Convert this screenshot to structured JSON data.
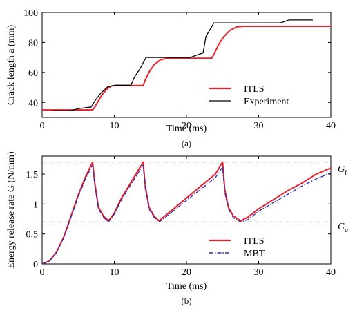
{
  "chart_data": [
    {
      "type": "line",
      "panel_label": "(a)",
      "xlabel": "Time (ms)",
      "ylabel": "Crack length a (mm)",
      "xlim": [
        0,
        40
      ],
      "ylim": [
        30,
        100
      ],
      "xticks": [
        0,
        10,
        20,
        30,
        40
      ],
      "yticks": [
        40,
        60,
        80,
        100
      ],
      "grid": false,
      "legend_position": "bottom-right",
      "series": [
        {
          "name": "ITLS",
          "color": "#e8202a",
          "style": "solid",
          "x": [
            0,
            7,
            7.3,
            7.8,
            8.3,
            9.0,
            9.6,
            10.2,
            11.0,
            14.0,
            14.3,
            14.9,
            15.6,
            16.4,
            17.5,
            23.5,
            23.9,
            24.5,
            25.2,
            26.0,
            27.0,
            28.0,
            40
          ],
          "y": [
            35,
            35,
            37,
            41,
            45,
            49,
            51,
            51.3,
            51.3,
            51.3,
            55,
            61,
            65.5,
            68.5,
            69.5,
            69.5,
            73,
            79,
            84,
            88,
            90.5,
            90.8,
            90.8
          ]
        },
        {
          "name": "Experiment",
          "color": "#000000",
          "style": "solid",
          "x": [
            1.5,
            3.8,
            5.2,
            6.8,
            7.3,
            8.1,
            9.1,
            10.2,
            12.3,
            12.8,
            13.5,
            14.4,
            16.0,
            20.5,
            22.3,
            22.7,
            23.8,
            33.0,
            34.2,
            37.5
          ],
          "y": [
            34.5,
            34.5,
            36,
            37,
            41,
            46,
            50.5,
            51.5,
            51.5,
            57,
            62,
            70,
            70,
            70,
            73,
            84,
            93,
            93,
            95,
            95
          ]
        }
      ]
    },
    {
      "type": "line",
      "panel_label": "(b)",
      "xlabel": "Time (ms)",
      "ylabel": "Energy release rate G (N/mm)",
      "xlim": [
        0,
        40
      ],
      "ylim": [
        0,
        1.8
      ],
      "xticks": [
        0,
        10,
        20,
        30,
        40
      ],
      "yticks": [
        0,
        0.5,
        1,
        1.5
      ],
      "grid": false,
      "legend_position": "bottom-right",
      "reference_lines": [
        {
          "label": "G_i",
          "y": 1.7
        },
        {
          "label": "G_a",
          "y": 0.7
        }
      ],
      "series": [
        {
          "name": "ITLS",
          "color": "#e8202a",
          "style": "solid",
          "x": [
            0,
            1,
            2,
            3,
            4,
            5,
            6,
            7,
            7.3,
            7.8,
            8.5,
            9.2,
            10,
            11,
            12,
            13,
            14,
            14.3,
            14.8,
            15.5,
            16.2,
            17,
            18,
            20,
            22,
            24,
            25,
            25.3,
            25.8,
            26.5,
            27.5,
            28.5,
            30,
            32,
            34,
            36,
            38,
            40
          ],
          "y": [
            0,
            0.05,
            0.2,
            0.45,
            0.8,
            1.15,
            1.45,
            1.7,
            1.35,
            0.95,
            0.8,
            0.72,
            0.85,
            1.1,
            1.3,
            1.5,
            1.7,
            1.3,
            0.95,
            0.8,
            0.72,
            0.8,
            0.9,
            1.1,
            1.3,
            1.5,
            1.7,
            1.25,
            0.95,
            0.8,
            0.72,
            0.78,
            0.92,
            1.07,
            1.22,
            1.35,
            1.5,
            1.6
          ]
        },
        {
          "name": "MBT",
          "color": "#2a2ab0",
          "style": "dash-dot",
          "x": [
            0,
            1,
            2,
            3,
            4,
            5,
            6,
            7,
            7.3,
            7.8,
            8.5,
            9.2,
            10,
            11,
            12,
            13,
            14,
            14.3,
            14.8,
            15.5,
            16.2,
            17,
            18,
            20,
            22,
            24,
            25,
            25.3,
            25.8,
            26.5,
            27.5,
            28.5,
            30,
            32,
            34,
            36,
            38,
            40
          ],
          "y": [
            0,
            0.04,
            0.19,
            0.43,
            0.78,
            1.12,
            1.42,
            1.65,
            1.3,
            0.92,
            0.78,
            0.7,
            0.83,
            1.07,
            1.27,
            1.46,
            1.65,
            1.25,
            0.92,
            0.78,
            0.7,
            0.77,
            0.87,
            1.06,
            1.25,
            1.44,
            1.62,
            1.2,
            0.92,
            0.77,
            0.7,
            0.74,
            0.88,
            1.02,
            1.16,
            1.3,
            1.42,
            1.52
          ]
        }
      ]
    }
  ]
}
